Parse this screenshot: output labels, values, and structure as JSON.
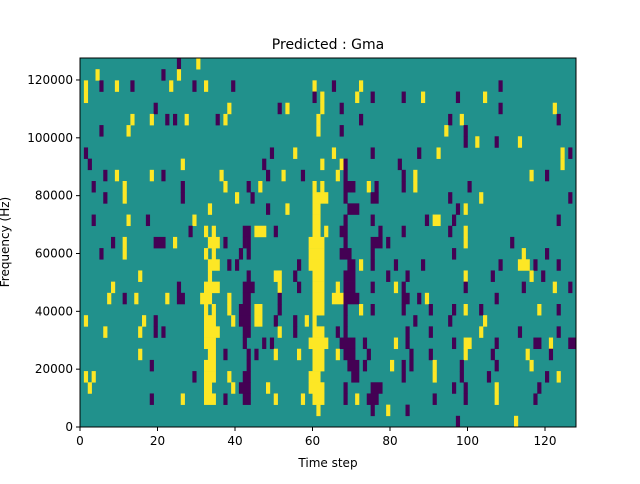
{
  "chart_data": {
    "type": "heatmap",
    "title": "Predicted : Gma",
    "xlabel": "Time step",
    "ylabel": "Frequency (Hz)",
    "xlim": [
      0,
      128
    ],
    "ylim": [
      0,
      127600
    ],
    "x_ticks": [
      0,
      20,
      40,
      60,
      80,
      100,
      120
    ],
    "y_ticks": [
      0,
      20000,
      40000,
      60000,
      80000,
      100000,
      120000
    ],
    "n_time_steps": 128,
    "n_freq_bins": 33,
    "colormap": {
      "low": "#440154",
      "mid": "#21918c",
      "high": "#fde725"
    },
    "values_legend": {
      "p": 0,
      "background": 0.5,
      "y": 1
    },
    "rows_top_to_bottom": [
      {
        "y": [
          30
        ],
        "p": [
          25
        ]
      },
      {
        "y": [
          4,
          25
        ],
        "p": [
          21
        ]
      },
      {
        "y": [
          1,
          9,
          23,
          32,
          60,
          72
        ],
        "p": [
          5,
          13,
          29,
          39,
          65,
          108
        ]
      },
      {
        "y": [
          1,
          62,
          71,
          88,
          104
        ],
        "p": [
          60,
          75,
          83,
          97
        ]
      },
      {
        "y": [
          38,
          53,
          62,
          122
        ],
        "p": [
          19,
          51,
          67,
          108
        ]
      },
      {
        "y": [
          13,
          18,
          27,
          37,
          61,
          98
        ],
        "p": [
          22,
          24,
          35,
          72,
          95,
          123
        ]
      },
      {
        "y": [
          12,
          61,
          94
        ],
        "p": [
          5,
          67,
          99
        ]
      },
      {
        "y": [
          102,
          113
        ],
        "p": [
          99,
          107
        ]
      },
      {
        "y": [
          55,
          65,
          92,
          124
        ],
        "p": [
          1,
          49,
          75,
          87,
          126
        ]
      },
      {
        "y": [
          26,
          62,
          67,
          124
        ],
        "p": [
          2,
          47,
          68,
          82
        ]
      },
      {
        "y": [
          9,
          18,
          36,
          52,
          66,
          86,
          116
        ],
        "p": [
          6,
          21,
          48,
          57,
          68,
          83,
          120
        ]
      },
      {
        "y": [
          11,
          37,
          46,
          60,
          62,
          74,
          86
        ],
        "p": [
          3,
          26,
          43,
          [
            68,
            70
          ],
          76,
          83,
          100
        ]
      },
      {
        "y": [
          11,
          40,
          [
            60,
            63
          ],
          103
        ],
        "p": [
          6,
          26,
          44,
          68,
          [
            75,
            76
          ],
          95,
          126
        ]
      },
      {
        "y": [
          33,
          53,
          [
            60,
            61
          ],
          99
        ],
        "p": [
          48,
          [
            69,
            71
          ],
          97
        ]
      },
      {
        "y": [
          12,
          29,
          [
            60,
            61
          ],
          91,
          92
        ],
        "p": [
          3,
          17,
          68,
          75,
          89,
          96,
          123
        ]
      },
      {
        "y": [
          32,
          34,
          [
            45,
            47
          ],
          [
            60,
            61
          ],
          63,
          99
        ],
        "p": [
          28,
          [
            42,
            43
          ],
          50,
          [
            67,
            68
          ],
          77,
          83,
          95
        ]
      },
      {
        "y": [
          11,
          24,
          [
            33,
            35
          ],
          [
            59,
            62
          ],
          99
        ],
        "p": [
          8,
          [
            19,
            21
          ],
          37,
          42,
          43,
          68,
          [
            75,
            77
          ],
          79,
          111
        ]
      },
      {
        "y": [
          11,
          32,
          34,
          [
            59,
            62
          ],
          114
        ],
        "p": [
          5,
          41,
          43,
          [
            67,
            69
          ],
          75,
          96,
          120
        ]
      },
      {
        "y": [
          [
            33,
            35
          ],
          [
            59,
            62
          ],
          72,
          [
            113,
            115
          ]
        ],
        "p": [
          38,
          40,
          56,
          [
            69,
            70
          ],
          75,
          81,
          88,
          108,
          117,
          123
        ]
      },
      {
        "y": [
          15,
          33,
          [
            50,
            51
          ],
          [
            60,
            62
          ],
          99,
          116
        ],
        "p": [
          43,
          55,
          [
            68,
            70
          ],
          79,
          84,
          106,
          119
        ]
      },
      {
        "y": [
          8,
          [
            32,
            35
          ],
          51,
          [
            60,
            62
          ],
          66,
          81,
          122
        ],
        "p": [
          25,
          [
            42,
            44
          ],
          56,
          [
            68,
            70
          ],
          75,
          83,
          99,
          114,
          126
        ]
      },
      {
        "y": [
          7,
          14,
          22,
          [
            31,
            33
          ],
          38,
          [
            60,
            62
          ],
          [
            65,
            67
          ],
          89
        ],
        "p": [
          11,
          [
            25,
            26
          ],
          [
            42,
            43
          ],
          51,
          [
            68,
            71
          ],
          83,
          84,
          87,
          107
        ]
      },
      {
        "y": [
          32,
          34,
          38,
          [
            45,
            46
          ],
          [
            60,
            62
          ],
          72,
          99,
          118
        ],
        "p": [
          [
            41,
            43
          ],
          51,
          68,
          75,
          83,
          90,
          96,
          103,
          123
        ]
      },
      {
        "y": [
          1,
          16,
          [
            32,
            34
          ],
          39,
          [
            45,
            46
          ],
          58,
          60,
          104
        ],
        "p": [
          19,
          [
            41,
            43
          ],
          50,
          55,
          68,
          86,
          95
        ]
      },
      {
        "y": [
          6,
          15,
          [
            32,
            35
          ],
          51,
          [
            60,
            62
          ],
          103
        ],
        "p": [
          19,
          21,
          [
            42,
            43
          ],
          55,
          66,
          68,
          84,
          90,
          113,
          123
        ]
      },
      {
        "y": [
          [
            32,
            34
          ],
          [
            59,
            63
          ],
          81,
          99,
          100,
          121
        ],
        "p": [
          42,
          47,
          49,
          [
            67,
            70
          ],
          73,
          84,
          96,
          107,
          [
            117,
            118
          ],
          [
            126,
            127
          ]
        ]
      },
      {
        "y": [
          15,
          [
            33,
            34
          ],
          50,
          56,
          [
            60,
            62
          ],
          66,
          99,
          115
        ],
        "p": [
          37,
          43,
          45,
          [
            68,
            70
          ],
          74,
          85,
          90,
          106,
          121
        ]
      },
      {
        "y": [
          [
            32,
            34
          ],
          [
            60,
            62
          ],
          80,
          91,
          116
        ],
        "p": [
          18,
          43,
          [
            69,
            71
          ],
          73,
          83,
          85,
          98,
          107
        ]
      },
      {
        "y": [
          1,
          3,
          [
            32,
            34
          ],
          38,
          [
            59,
            61
          ],
          91,
          123
        ],
        "p": [
          29,
          [
            42,
            43
          ],
          [
            70,
            71
          ],
          83,
          98,
          105,
          120
        ]
      },
      {
        "y": [
          2,
          [
            32,
            33
          ],
          39,
          48,
          [
            59,
            62
          ],
          107
        ],
        "p": [
          [
            41,
            43
          ],
          68,
          [
            75,
            77
          ],
          96,
          99,
          118
        ]
      },
      {
        "y": [
          26,
          [
            32,
            34
          ],
          50,
          57,
          [
            60,
            62
          ],
          71,
          107
        ],
        "p": [
          18,
          37,
          [
            42,
            43
          ],
          68,
          [
            74,
            76
          ],
          91,
          99,
          117
        ]
      },
      {
        "y": [
          61,
          79
        ],
        "p": [
          75,
          84
        ]
      },
      {
        "y": [
          112
        ],
        "p": [
          97
        ]
      }
    ]
  }
}
